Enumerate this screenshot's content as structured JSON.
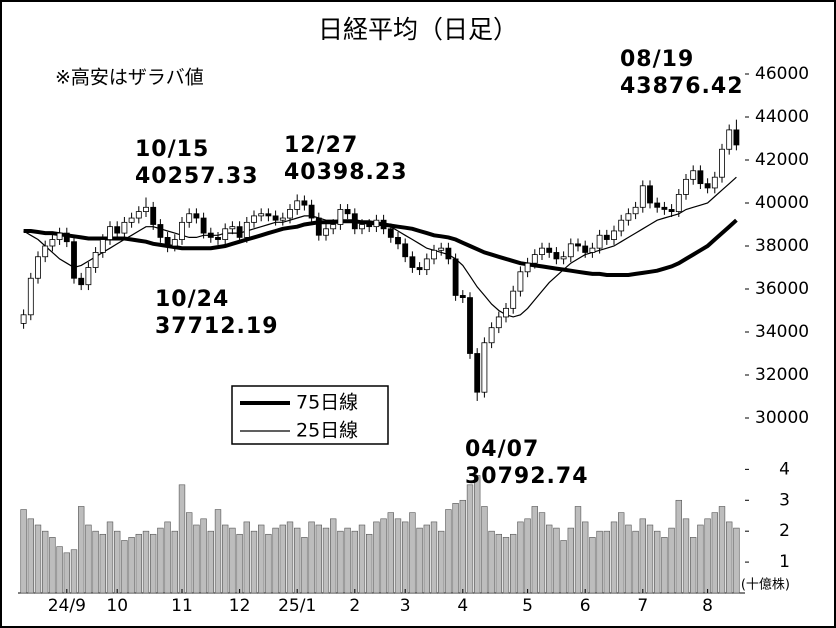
{
  "chart_data": {
    "type": "candlestick",
    "title": "日経平均（日足）",
    "note": "※高安はザラバ値",
    "categories": [
      null,
      null,
      null,
      null,
      null,
      null,
      "24/9",
      null,
      null,
      null,
      null,
      null,
      null,
      "10",
      null,
      null,
      null,
      null,
      null,
      null,
      null,
      null,
      "11",
      null,
      null,
      null,
      null,
      null,
      null,
      null,
      "12",
      null,
      null,
      null,
      null,
      null,
      null,
      null,
      "25/1",
      null,
      null,
      null,
      null,
      null,
      null,
      null,
      "2",
      null,
      null,
      null,
      null,
      null,
      null,
      "3",
      null,
      null,
      null,
      null,
      null,
      null,
      null,
      "4",
      null,
      null,
      null,
      null,
      null,
      null,
      null,
      null,
      "5",
      null,
      null,
      null,
      null,
      null,
      null,
      null,
      "6",
      null,
      null,
      null,
      null,
      null,
      null,
      null,
      "7",
      null,
      null,
      null,
      null,
      null,
      null,
      null,
      null,
      "8",
      null,
      null,
      null,
      null
    ],
    "open": [
      34400,
      34800,
      36500,
      37500,
      38000,
      38300,
      38600,
      38200,
      36500,
      36200,
      37000,
      37700,
      38300,
      38900,
      38600,
      39100,
      39300,
      39600,
      39800,
      39000,
      38400,
      38000,
      38300,
      39100,
      39500,
      39300,
      38600,
      38400,
      38300,
      38800,
      38900,
      38400,
      39100,
      39400,
      39500,
      39400,
      39200,
      39300,
      39700,
      40100,
      39900,
      39300,
      38500,
      38800,
      39000,
      39700,
      39500,
      38800,
      39000,
      38900,
      39200,
      38800,
      38400,
      38100,
      37500,
      37000,
      36900,
      37400,
      37800,
      37900,
      37400,
      35700,
      35600,
      33000,
      31200,
      33500,
      34200,
      34700,
      35100,
      35900,
      36800,
      37200,
      37600,
      37900,
      37700,
      37400,
      37500,
      38100,
      38000,
      37700,
      37900,
      38500,
      38300,
      38700,
      39200,
      39500,
      39800,
      40800,
      40000,
      39800,
      39700,
      39600,
      40400,
      41100,
      41500,
      40900,
      40700,
      41200,
      42500,
      43400
    ],
    "high": [
      35050,
      36750,
      37750,
      38250,
      38550,
      38850,
      38850,
      38450,
      36750,
      37250,
      37950,
      38550,
      39150,
      39150,
      39350,
      39550,
      39850,
      40257.33,
      40050,
      39250,
      38650,
      38550,
      39350,
      39750,
      39750,
      39550,
      38850,
      38650,
      39050,
      39150,
      39150,
      39350,
      39650,
      39750,
      39750,
      39650,
      39550,
      39950,
      40398.23,
      40350,
      40150,
      39550,
      39050,
      39250,
      39950,
      39950,
      39750,
      39250,
      39250,
      39450,
      39450,
      39050,
      38650,
      38350,
      37750,
      37250,
      37650,
      38050,
      38150,
      38150,
      37650,
      35950,
      35850,
      33250,
      33750,
      34450,
      34950,
      35350,
      36150,
      37050,
      37450,
      37850,
      38150,
      38150,
      37950,
      37750,
      38350,
      38350,
      38250,
      38150,
      38750,
      38750,
      38950,
      39450,
      39750,
      40050,
      41050,
      41050,
      40250,
      40050,
      39950,
      40650,
      41350,
      41750,
      41750,
      41150,
      41450,
      42750,
      43650,
      43876.42
    ],
    "low": [
      34150,
      34550,
      36250,
      37250,
      37750,
      38050,
      37950,
      36250,
      35950,
      35950,
      36750,
      37450,
      38050,
      38350,
      38350,
      38850,
      39050,
      39350,
      38750,
      38150,
      37712.19,
      37750,
      38050,
      38850,
      39050,
      38350,
      38150,
      38050,
      38050,
      38550,
      38150,
      38150,
      38850,
      39150,
      39150,
      38950,
      38950,
      39050,
      39450,
      39650,
      39050,
      38250,
      38250,
      38550,
      38750,
      39250,
      38550,
      38550,
      38650,
      38650,
      38550,
      38150,
      37850,
      37250,
      36750,
      36650,
      36650,
      37150,
      37550,
      37150,
      35450,
      35350,
      32750,
      30792.74,
      30950,
      33250,
      33950,
      34450,
      34850,
      35650,
      36550,
      36950,
      37350,
      37450,
      37150,
      37150,
      37250,
      37750,
      37450,
      37450,
      37650,
      38050,
      38050,
      38450,
      38950,
      39250,
      39550,
      39750,
      39550,
      39450,
      39350,
      39350,
      40150,
      40850,
      40650,
      40450,
      40450,
      40950,
      42250,
      42450
    ],
    "close": [
      34800,
      36500,
      37500,
      38000,
      38300,
      38600,
      38200,
      36500,
      36200,
      37000,
      37700,
      38300,
      38900,
      38600,
      39100,
      39300,
      39600,
      39800,
      39000,
      38400,
      38000,
      38300,
      39100,
      39500,
      39300,
      38600,
      38400,
      38300,
      38800,
      38900,
      38400,
      39100,
      39400,
      39500,
      39400,
      39200,
      39300,
      39700,
      40100,
      39900,
      39300,
      38500,
      38800,
      39000,
      39700,
      39500,
      38800,
      39000,
      38900,
      39200,
      38800,
      38400,
      38100,
      37500,
      37000,
      36900,
      37400,
      37800,
      37900,
      37400,
      35700,
      35600,
      33000,
      31200,
      33500,
      34200,
      34700,
      35100,
      35900,
      36800,
      37200,
      37600,
      37900,
      37700,
      37400,
      37500,
      38100,
      38000,
      37700,
      37900,
      38500,
      38300,
      38700,
      39200,
      39500,
      39800,
      40800,
      40000,
      39800,
      39700,
      39600,
      40400,
      41100,
      41500,
      40900,
      40700,
      41200,
      42500,
      43400,
      42700
    ],
    "up_color": "#ffffff",
    "down_color": "#000000",
    "ylim": [
      30000,
      46000
    ],
    "yticks": [
      30000,
      32000,
      34000,
      36000,
      38000,
      40000,
      42000,
      44000,
      46000
    ],
    "moving_averages": [
      {
        "name": "75日線",
        "color": "#000000",
        "values": [
          38700,
          38700,
          38650,
          38600,
          38600,
          38550,
          38500,
          38450,
          38400,
          38350,
          38350,
          38350,
          38350,
          38350,
          38350,
          38300,
          38250,
          38200,
          38100,
          38050,
          38000,
          37950,
          37900,
          37900,
          37900,
          37900,
          37900,
          37950,
          38000,
          38100,
          38200,
          38300,
          38400,
          38500,
          38600,
          38700,
          38800,
          38850,
          38900,
          39000,
          39050,
          39100,
          39100,
          39100,
          39150,
          39150,
          39150,
          39100,
          39100,
          39050,
          39000,
          38950,
          38900,
          38850,
          38800,
          38700,
          38600,
          38500,
          38450,
          38400,
          38300,
          38150,
          38000,
          37850,
          37700,
          37600,
          37500,
          37400,
          37300,
          37200,
          37150,
          37100,
          37050,
          37000,
          36950,
          36900,
          36850,
          36800,
          36750,
          36700,
          36700,
          36650,
          36650,
          36650,
          36650,
          36700,
          36750,
          36800,
          36850,
          36950,
          37050,
          37200,
          37400,
          37600,
          37800,
          38000,
          38300,
          38600,
          38900,
          39200
        ]
      },
      {
        "name": "25日線",
        "color": "#000000",
        "values": [
          38700,
          38500,
          38300,
          38000,
          37700,
          37400,
          37200,
          37000,
          37100,
          37300,
          37500,
          37700,
          37900,
          38100,
          38300,
          38500,
          38700,
          38900,
          38900,
          38800,
          38700,
          38600,
          38500,
          38400,
          38400,
          38500,
          38500,
          38500,
          38600,
          38600,
          38600,
          38700,
          38800,
          38900,
          39000,
          39100,
          39100,
          39200,
          39300,
          39400,
          39400,
          39300,
          39200,
          39200,
          39200,
          39200,
          39100,
          39100,
          39000,
          39000,
          39000,
          38900,
          38700,
          38500,
          38300,
          38100,
          37900,
          37800,
          37700,
          37600,
          37400,
          37100,
          36600,
          36100,
          35700,
          35300,
          35000,
          34800,
          34700,
          34800,
          35100,
          35500,
          35900,
          36300,
          36600,
          36900,
          37200,
          37400,
          37600,
          37700,
          37800,
          37900,
          38000,
          38200,
          38400,
          38600,
          38800,
          39000,
          39200,
          39300,
          39400,
          39500,
          39700,
          39800,
          39900,
          40000,
          40300,
          40600,
          40900,
          41200
        ]
      }
    ],
    "volume": {
      "unit": "(十億株)",
      "color": "#bdbdbd",
      "ylim": [
        0,
        4.4
      ],
      "yticks": [
        1,
        2,
        3,
        4
      ],
      "values": [
        2.7,
        2.4,
        2.2,
        2.0,
        1.8,
        1.5,
        1.3,
        1.4,
        2.8,
        2.2,
        2.0,
        1.9,
        2.3,
        2.0,
        1.7,
        1.8,
        1.9,
        2.0,
        1.9,
        2.1,
        2.3,
        2.0,
        3.5,
        2.6,
        2.2,
        2.4,
        2.0,
        2.7,
        2.2,
        2.1,
        1.9,
        2.3,
        2.0,
        2.2,
        1.9,
        2.1,
        2.2,
        2.3,
        2.1,
        1.8,
        2.3,
        2.2,
        2.1,
        2.4,
        2.0,
        2.1,
        2.0,
        2.2,
        1.9,
        2.3,
        2.4,
        2.6,
        2.4,
        2.3,
        2.6,
        2.1,
        2.2,
        2.3,
        2.0,
        2.7,
        2.9,
        3.0,
        3.5,
        3.8,
        2.8,
        2.0,
        1.9,
        1.8,
        1.9,
        2.3,
        2.4,
        2.8,
        2.6,
        2.2,
        2.1,
        1.7,
        2.1,
        2.8,
        2.3,
        1.8,
        2.0,
        2.0,
        2.3,
        2.6,
        2.2,
        2.0,
        2.4,
        2.2,
        2.0,
        1.8,
        2.1,
        3.0,
        2.4,
        1.8,
        2.2,
        2.4,
        2.6,
        2.8,
        2.3,
        2.1
      ]
    },
    "annotations": [
      {
        "date": "10/15",
        "value": 40257.33
      },
      {
        "date": "12/27",
        "value": 40398.23
      },
      {
        "date": "10/24",
        "value": 37712.19
      },
      {
        "date": "04/07",
        "value": 30792.74
      },
      {
        "date": "08/19",
        "value": 43876.42
      }
    ]
  }
}
